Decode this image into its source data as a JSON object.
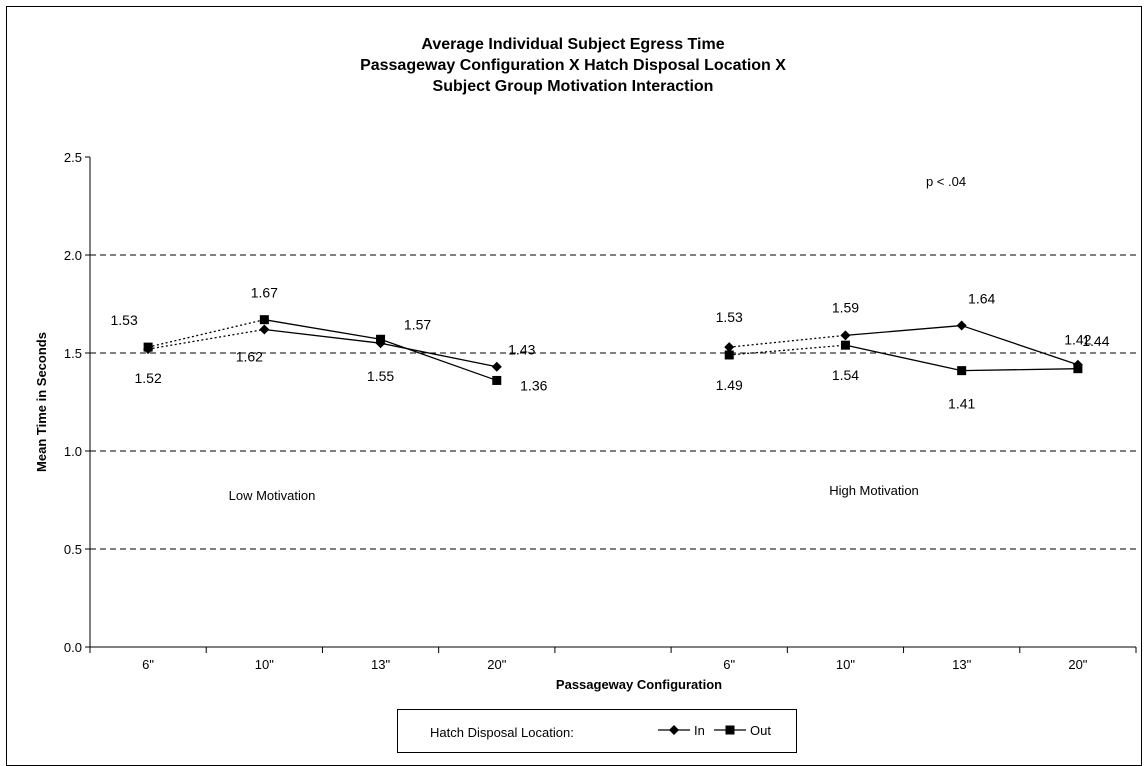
{
  "chart_data": {
    "type": "line",
    "title": [
      "Average Individual Subject Egress Time",
      "Passageway Configuration X Hatch Disposal Location X",
      "Subject Group Motivation Interaction"
    ],
    "xlabel": "Passageway Configuration",
    "ylabel": "Mean Time in Seconds",
    "ylim": [
      0,
      2.5
    ],
    "yticks": [
      "0.0",
      "0.5",
      "1.0",
      "1.5",
      "2.0",
      "2.5"
    ],
    "grid": "dashed horizontal",
    "categories": [
      "6\"",
      "10\"",
      "13\"",
      "20\"",
      "6\"",
      "10\"",
      "13\"",
      "20\""
    ],
    "groups": [
      {
        "name": "Low Motivation",
        "start": 0,
        "end": 3
      },
      {
        "name": "High Motivation",
        "start": 4,
        "end": 7
      }
    ],
    "series": [
      {
        "name": "In",
        "marker": "diamond",
        "values": [
          1.52,
          1.62,
          1.55,
          1.43,
          1.53,
          1.59,
          1.64,
          1.44
        ],
        "labels": [
          "1.52",
          "1.62",
          "1.55",
          "1.43",
          "1.53",
          "1.59",
          "1.64",
          "1.44"
        ]
      },
      {
        "name": "Out",
        "marker": "square",
        "values": [
          1.53,
          1.67,
          1.57,
          1.36,
          1.49,
          1.54,
          1.41,
          1.42
        ],
        "labels": [
          "1.53",
          "1.67",
          "1.57",
          "1.36",
          "1.49",
          "1.54",
          "1.41",
          "1.42"
        ]
      }
    ],
    "annotation": "p < .04",
    "legend": {
      "title": "Hatch Disposal Location:",
      "placement": "bottom"
    }
  }
}
